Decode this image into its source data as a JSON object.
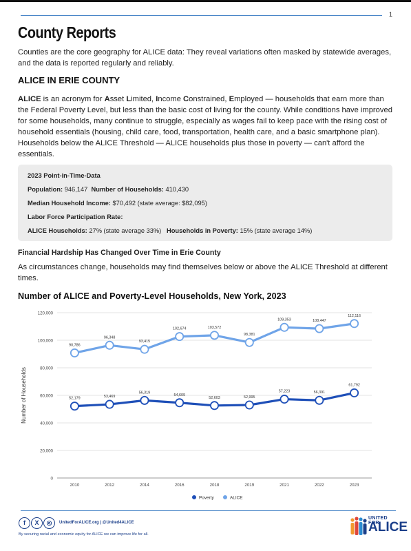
{
  "page_number": "1",
  "title": "County Reports",
  "intro": "Counties are the core geography for ALICE data: They reveal variations often masked by statewide averages, and the data is reported regularly and reliably.",
  "section_heading": "ALICE IN ERIE COUNTY",
  "alice_def": {
    "w1": "ALICE",
    "t1": " is an acronym for ",
    "a": "A",
    "t2": "sset ",
    "l": "L",
    "t3": "imited, ",
    "i": "I",
    "t4": "ncome ",
    "c": "C",
    "t5": "onstrained, ",
    "e": "E",
    "t6": "mployed — households that earn more than the Federal Poverty Level, but less than the basic cost of living for the county. While conditions have improved for some households, many continue to struggle, especially as wages fail to keep pace with the rising cost of household essentials (housing, child care, food, transportation, health care, and a basic smartphone plan). Households below the ALICE Threshold — ALICE households plus those in poverty — can't afford the essentials."
  },
  "pit_box": {
    "heading": "2023 Point-in-Time-Data",
    "population_label": "Population:",
    "population_value": " 946,147",
    "households_label": "Number of Households:",
    "households_value": " 410,430",
    "income_label": "Median Household Income:",
    "income_value": " $70,492 (state average: $82,095)",
    "labor_label": "Labor Force Participation Rate:",
    "alice_hh_label": "ALICE Households:",
    "alice_hh_value": " 27% (state average 33%)",
    "poverty_hh_label": "Households in Poverty:",
    "poverty_hh_value": " 15% (state average 14%)"
  },
  "hardship_heading": "Financial Hardship Has Changed Over Time in Erie County",
  "hardship_text": "As circumstances change, households may find themselves below or above the ALICE Threshold at different times.",
  "chart_title": "Number of ALICE and Poverty-Level Households, New York, 2023",
  "chart_data": {
    "type": "line",
    "title": "Number of ALICE and Poverty-Level Households, New York, 2023",
    "xlabel": "",
    "ylabel": "Number of Households",
    "x": [
      "2010",
      "2012",
      "2014",
      "2016",
      "2018",
      "2019",
      "2021",
      "2022",
      "2023"
    ],
    "ylim": [
      0,
      120000
    ],
    "yticks": [
      0,
      20000,
      40000,
      60000,
      80000,
      100000,
      120000
    ],
    "ytick_labels": [
      "0",
      "20,000",
      "40,000",
      "60,000",
      "80,000",
      "100,000",
      "120,000"
    ],
    "grid": true,
    "legend": "bottom-center",
    "series": [
      {
        "name": "Poverty",
        "color": "#1e4fb8",
        "values": [
          52179,
          53469,
          56319,
          54609,
          52603,
          52995,
          57223,
          56391,
          61792
        ],
        "labels": [
          "52,179",
          "53,469",
          "56,319",
          "54,609",
          "52,603",
          "52,995",
          "57,223",
          "56,391",
          "61,792"
        ]
      },
      {
        "name": "ALICE",
        "color": "#6fa4e8",
        "values": [
          90786,
          96348,
          93415,
          102674,
          103572,
          98381,
          109353,
          108447,
          112116
        ],
        "labels": [
          "90,786",
          "96,348",
          "93,415",
          "102,674",
          "103,572",
          "98,381",
          "109,353",
          "108,447",
          "112,116"
        ]
      }
    ]
  },
  "footer": {
    "social_icons": [
      "facebook-icon",
      "x-icon",
      "instagram-icon"
    ],
    "handle": "UnitedForALICE.org | @United4ALICE",
    "tagline": "By securing racial and economic equity for ALICE we can improve life for all.",
    "logo_line1": "UNITED FOR",
    "logo_line2": "ALICE"
  }
}
